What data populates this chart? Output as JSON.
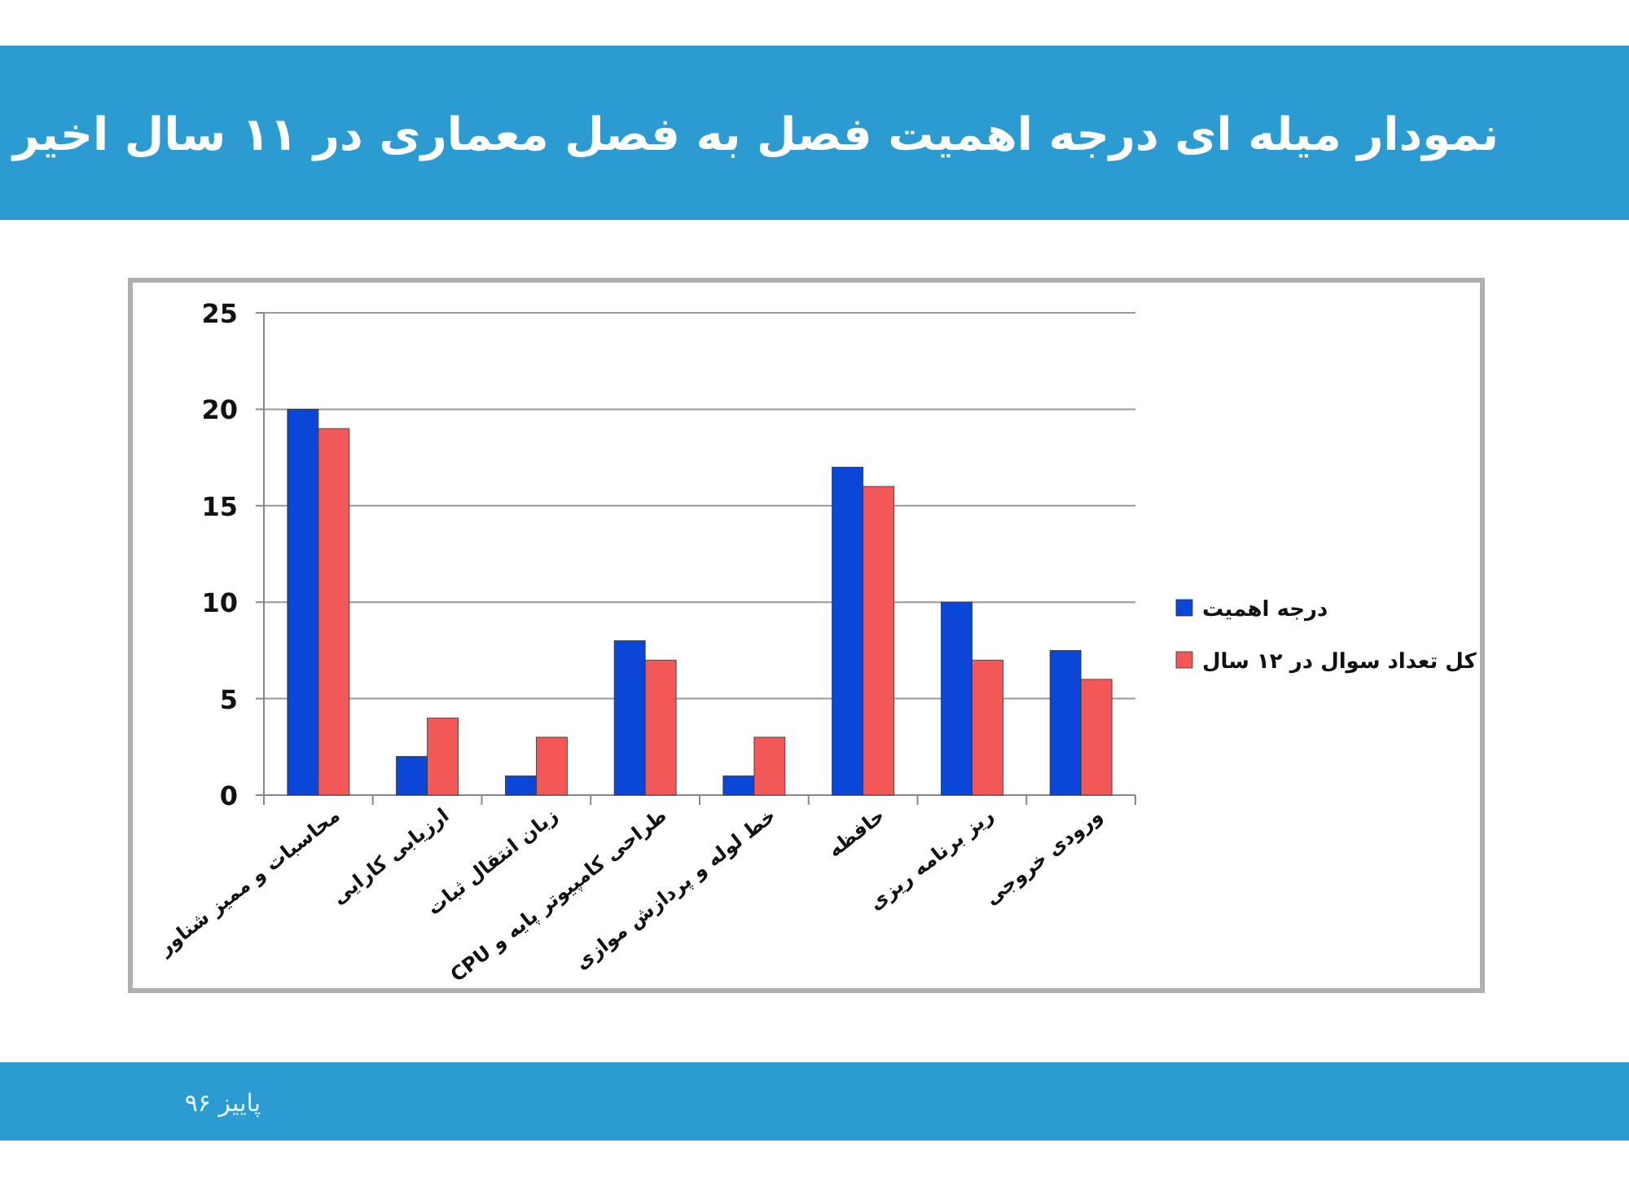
{
  "chart_data": {
    "type": "bar",
    "title": "نمودار میله ای درجه اهمیت فصل به فصل معماری در ۱۱ سال اخیر",
    "categories": [
      "محاسبات و ممیز شناور",
      "ارزیابی کارایی",
      "زبان انتقال ثبات",
      "طراحی کامپیوتر پایه و CPU",
      "خط لوله و پردازش موازی",
      "حافظه",
      "ریز برنامه ریزی",
      "ورودی خروجی"
    ],
    "series": [
      {
        "name": "درجه اهمیت",
        "color": "#0a46d8",
        "values": [
          20,
          2,
          1,
          8,
          1,
          17,
          10,
          7.5
        ]
      },
      {
        "name": "کل تعداد سوال در ۱۲ سال",
        "color": "#f25858",
        "values": [
          19,
          4,
          3,
          7,
          3,
          16,
          7,
          6
        ]
      }
    ],
    "ylim": [
      0,
      25
    ],
    "yticks": [
      0,
      5,
      10,
      15,
      20,
      25
    ],
    "grid": "y",
    "legend": "right",
    "annotations": [
      "پاییز ۹۶"
    ]
  }
}
